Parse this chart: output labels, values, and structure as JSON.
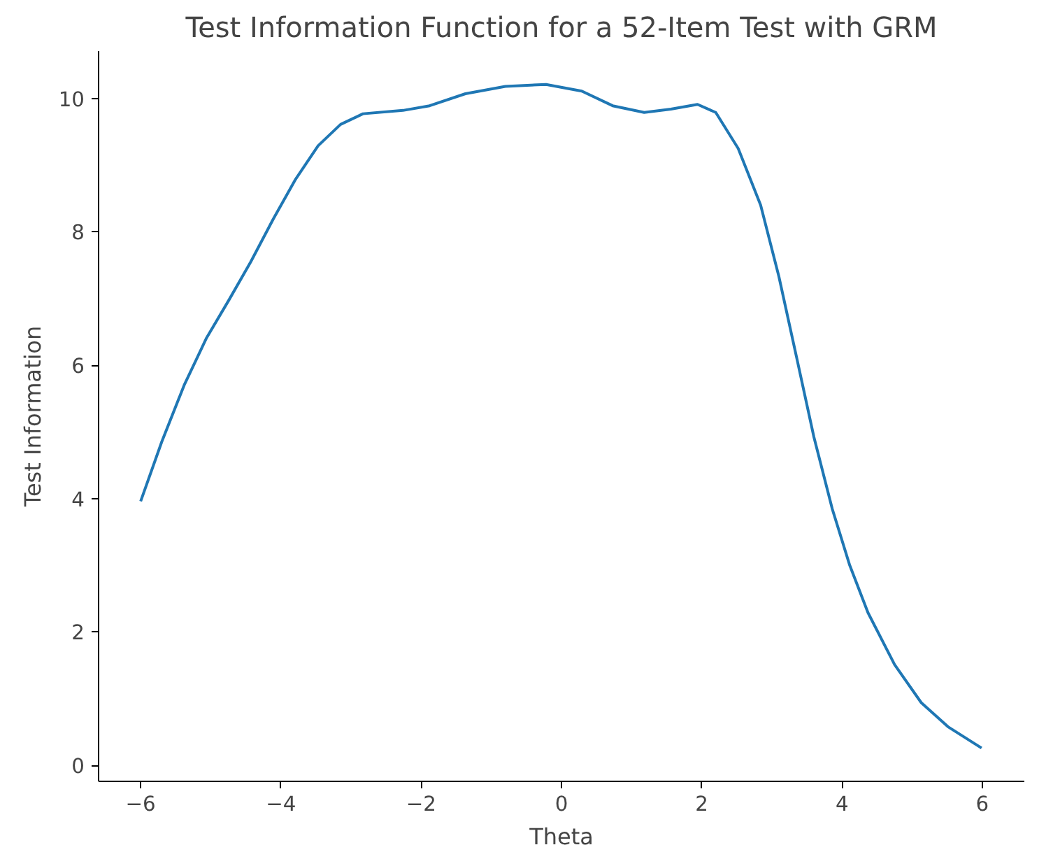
{
  "chart_data": {
    "type": "line",
    "title": "Test Information Function for a 52-Item Test with GRM",
    "xlabel": "Theta",
    "ylabel": "Test Information",
    "x": [
      -6.0,
      -5.7,
      -5.38,
      -5.06,
      -4.74,
      -4.43,
      -4.11,
      -3.79,
      -3.47,
      -3.15,
      -2.83,
      -2.26,
      -1.88,
      -1.37,
      -0.8,
      -0.22,
      0.29,
      0.73,
      1.18,
      1.56,
      1.94,
      2.2,
      2.52,
      2.84,
      3.1,
      3.35,
      3.6,
      3.86,
      4.11,
      4.37,
      4.75,
      5.13,
      5.51,
      5.99
    ],
    "series": [
      {
        "color": "#1f77b4",
        "values": [
          3.96,
          4.85,
          5.7,
          6.41,
          6.98,
          7.55,
          8.19,
          8.79,
          9.29,
          9.61,
          9.77,
          9.82,
          9.89,
          10.07,
          10.18,
          10.21,
          10.11,
          9.89,
          9.79,
          9.84,
          9.91,
          9.79,
          9.25,
          8.4,
          7.33,
          6.13,
          4.92,
          3.85,
          3.0,
          2.29,
          1.51,
          0.94,
          0.58,
          0.26
        ]
      }
    ],
    "xlim": [
      -6.6,
      6.6
    ],
    "ylim": [
      -0.24,
      10.71
    ],
    "xticks": [
      {
        "value": -6,
        "label": "−6"
      },
      {
        "value": -4,
        "label": "−4"
      },
      {
        "value": -2,
        "label": "−2"
      },
      0,
      2,
      4,
      6
    ],
    "yticks": [
      0,
      2,
      4,
      6,
      8,
      10
    ],
    "marker": "none",
    "line_style": "solid"
  }
}
